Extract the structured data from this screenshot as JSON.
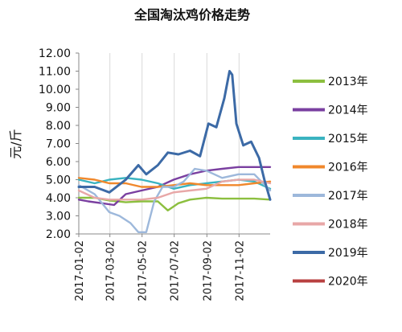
{
  "chart_data": {
    "type": "line",
    "title": "全国淘汰鸡价格走势",
    "xlabel": "",
    "ylabel": "元/斤",
    "ylim": [
      2.0,
      12.0
    ],
    "y_ticks": [
      "2.00",
      "3.00",
      "4.00",
      "5.00",
      "6.00",
      "7.00",
      "8.00",
      "9.00",
      "10.00",
      "11.00",
      "12.00"
    ],
    "x_ticks": [
      "2017-01-02",
      "2017-03-02",
      "2017-05-02",
      "2017-07-02",
      "2017-09-02",
      "2017-11-02"
    ],
    "x_domain": [
      "2017-01-02",
      "2017-12-31"
    ],
    "grid": "vertical",
    "legend_position": "right",
    "series": [
      {
        "name": "2013年",
        "color": "#8cbf3f",
        "points": [
          [
            "2017-01-02",
            4.0
          ],
          [
            "2017-02-01",
            4.0
          ],
          [
            "2017-03-01",
            3.85
          ],
          [
            "2017-04-01",
            3.75
          ],
          [
            "2017-05-01",
            3.8
          ],
          [
            "2017-06-01",
            3.8
          ],
          [
            "2017-06-20",
            3.3
          ],
          [
            "2017-07-10",
            3.7
          ],
          [
            "2017-08-01",
            3.9
          ],
          [
            "2017-09-01",
            4.0
          ],
          [
            "2017-10-01",
            3.95
          ],
          [
            "2017-11-01",
            3.95
          ],
          [
            "2017-12-01",
            3.95
          ],
          [
            "2017-12-31",
            3.9
          ]
        ]
      },
      {
        "name": "2014年",
        "color": "#7a3fa0",
        "points": [
          [
            "2017-01-02",
            3.9
          ],
          [
            "2017-01-20",
            3.8
          ],
          [
            "2017-02-15",
            3.7
          ],
          [
            "2017-03-10",
            3.6
          ],
          [
            "2017-04-01",
            4.2
          ],
          [
            "2017-05-01",
            4.4
          ],
          [
            "2017-06-01",
            4.6
          ],
          [
            "2017-07-01",
            5.0
          ],
          [
            "2017-08-01",
            5.3
          ],
          [
            "2017-09-01",
            5.5
          ],
          [
            "2017-10-01",
            5.6
          ],
          [
            "2017-11-01",
            5.7
          ],
          [
            "2017-12-01",
            5.7
          ],
          [
            "2017-12-31",
            5.7
          ]
        ]
      },
      {
        "name": "2015年",
        "color": "#3ab3c0",
        "points": [
          [
            "2017-01-02",
            5.0
          ],
          [
            "2017-02-01",
            4.8
          ],
          [
            "2017-03-01",
            5.0
          ],
          [
            "2017-04-01",
            5.1
          ],
          [
            "2017-05-01",
            5.0
          ],
          [
            "2017-06-01",
            4.8
          ],
          [
            "2017-07-01",
            4.5
          ],
          [
            "2017-08-01",
            4.7
          ],
          [
            "2017-09-01",
            4.8
          ],
          [
            "2017-10-01",
            4.9
          ],
          [
            "2017-11-01",
            5.0
          ],
          [
            "2017-12-01",
            4.9
          ],
          [
            "2017-12-31",
            4.5
          ]
        ]
      },
      {
        "name": "2016年",
        "color": "#f0882c",
        "points": [
          [
            "2017-01-02",
            5.1
          ],
          [
            "2017-02-01",
            5.0
          ],
          [
            "2017-03-01",
            4.8
          ],
          [
            "2017-04-01",
            4.8
          ],
          [
            "2017-05-01",
            4.6
          ],
          [
            "2017-06-01",
            4.6
          ],
          [
            "2017-07-01",
            4.7
          ],
          [
            "2017-08-01",
            4.8
          ],
          [
            "2017-09-01",
            4.7
          ],
          [
            "2017-10-01",
            4.7
          ],
          [
            "2017-11-01",
            4.7
          ],
          [
            "2017-12-01",
            4.8
          ],
          [
            "2017-12-31",
            4.9
          ]
        ]
      },
      {
        "name": "2017年",
        "color": "#9db8db",
        "points": [
          [
            "2017-01-02",
            4.7
          ],
          [
            "2017-02-01",
            4.2
          ],
          [
            "2017-03-01",
            3.2
          ],
          [
            "2017-03-20",
            3.0
          ],
          [
            "2017-04-10",
            2.6
          ],
          [
            "2017-04-25",
            2.1
          ],
          [
            "2017-05-10",
            2.1
          ],
          [
            "2017-05-25",
            3.8
          ],
          [
            "2017-06-10",
            4.6
          ],
          [
            "2017-07-01",
            4.6
          ],
          [
            "2017-07-20",
            4.9
          ],
          [
            "2017-08-10",
            5.6
          ],
          [
            "2017-09-01",
            5.5
          ],
          [
            "2017-10-01",
            5.1
          ],
          [
            "2017-11-01",
            5.3
          ],
          [
            "2017-12-01",
            5.3
          ],
          [
            "2017-12-31",
            4.4
          ]
        ]
      },
      {
        "name": "2018年",
        "color": "#e8a7a7",
        "points": [
          [
            "2017-01-02",
            4.4
          ],
          [
            "2017-02-01",
            4.0
          ],
          [
            "2017-03-01",
            3.9
          ],
          [
            "2017-04-01",
            3.9
          ],
          [
            "2017-05-01",
            3.9
          ],
          [
            "2017-06-01",
            4.0
          ],
          [
            "2017-07-01",
            4.3
          ],
          [
            "2017-08-01",
            4.4
          ],
          [
            "2017-09-01",
            4.5
          ],
          [
            "2017-10-01",
            4.9
          ],
          [
            "2017-11-01",
            5.0
          ],
          [
            "2017-12-01",
            5.0
          ],
          [
            "2017-12-31",
            4.8
          ]
        ]
      },
      {
        "name": "2019年",
        "color": "#3c6aa6",
        "points": [
          [
            "2017-01-02",
            4.6
          ],
          [
            "2017-02-01",
            4.6
          ],
          [
            "2017-03-01",
            4.3
          ],
          [
            "2017-04-01",
            5.0
          ],
          [
            "2017-04-25",
            5.8
          ],
          [
            "2017-05-10",
            5.3
          ],
          [
            "2017-06-01",
            5.8
          ],
          [
            "2017-06-20",
            6.5
          ],
          [
            "2017-07-10",
            6.4
          ],
          [
            "2017-08-01",
            6.6
          ],
          [
            "2017-08-20",
            6.3
          ],
          [
            "2017-09-05",
            8.1
          ],
          [
            "2017-09-20",
            7.9
          ],
          [
            "2017-10-05",
            9.5
          ],
          [
            "2017-10-15",
            11.0
          ],
          [
            "2017-10-20",
            10.8
          ],
          [
            "2017-10-28",
            8.1
          ],
          [
            "2017-11-10",
            6.9
          ],
          [
            "2017-11-25",
            7.1
          ],
          [
            "2017-12-10",
            6.2
          ],
          [
            "2017-12-20",
            5.0
          ],
          [
            "2017-12-31",
            3.9
          ]
        ]
      },
      {
        "name": "2020年",
        "color": "#b84040",
        "points": []
      }
    ]
  }
}
